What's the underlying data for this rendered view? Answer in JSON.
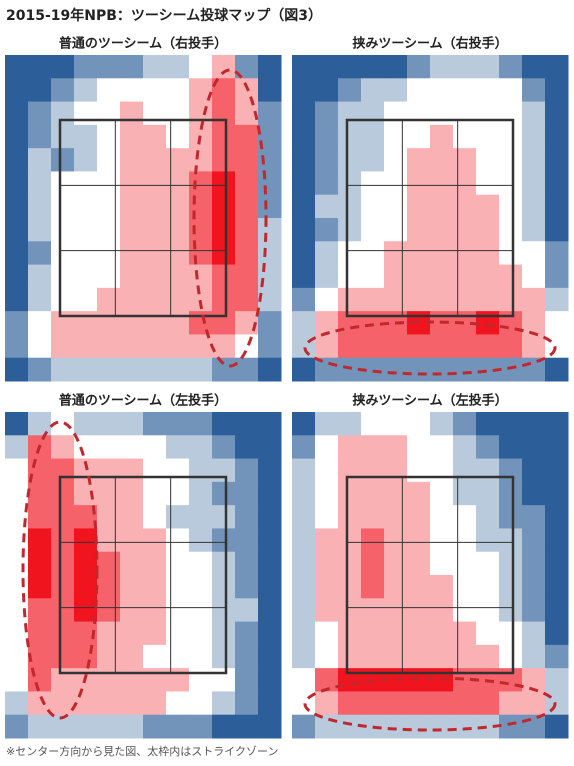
{
  "title": "2015-19年NPB：ツーシーム投球マップ（図3）",
  "note": "※センター方向から見た図、太枠内はストライクゾーン",
  "zlim": [
    -3,
    3
  ],
  "colors": {
    "low": "#2c5f99",
    "mid": "#ffffff",
    "high": "#f0141e"
  },
  "chart_data": [
    {
      "type": "heatmap",
      "title": "普通のツーシーム（右投手）",
      "values": [
        [
          -3,
          -3,
          -3,
          -2,
          -2,
          -2,
          -1,
          -1,
          0,
          1,
          -2,
          -3
        ],
        [
          -3,
          -3,
          -2,
          -1,
          0,
          0,
          0,
          0,
          1,
          2,
          1,
          -3
        ],
        [
          -3,
          -2,
          -1,
          0,
          0,
          1,
          0,
          0,
          1,
          2,
          1,
          -2
        ],
        [
          -3,
          -2,
          -1,
          -1,
          0,
          1,
          1,
          0,
          1,
          2,
          2,
          -2
        ],
        [
          -3,
          -1,
          -2,
          -1,
          0,
          1,
          1,
          1,
          1,
          2,
          2,
          -2
        ],
        [
          -3,
          -1,
          0,
          0,
          0,
          1,
          1,
          1,
          2,
          3,
          2,
          -2
        ],
        [
          -3,
          -1,
          0,
          0,
          0,
          1,
          1,
          1,
          2,
          3,
          2,
          -2
        ],
        [
          -3,
          -1,
          0,
          0,
          0,
          1,
          1,
          1,
          2,
          3,
          2,
          -1
        ],
        [
          -3,
          -2,
          0,
          0,
          0,
          1,
          1,
          1,
          2,
          3,
          2,
          -1
        ],
        [
          -3,
          -1,
          0,
          0,
          0,
          1,
          1,
          1,
          1,
          2,
          2,
          -1
        ],
        [
          -3,
          -1,
          0,
          0,
          1,
          1,
          1,
          1,
          1,
          2,
          2,
          -1
        ],
        [
          -2,
          0,
          1,
          1,
          1,
          1,
          1,
          1,
          2,
          2,
          1,
          -2
        ],
        [
          -2,
          0,
          1,
          1,
          1,
          1,
          1,
          1,
          1,
          1,
          0,
          -2
        ],
        [
          -3,
          -2,
          -1,
          -1,
          -1,
          -1,
          -1,
          -1,
          -1,
          -2,
          -2,
          -3
        ]
      ]
    },
    {
      "type": "heatmap",
      "title": "挟みツーシーム（右投手）",
      "values": [
        [
          -3,
          -3,
          -3,
          -3,
          -3,
          -2,
          -1,
          -1,
          -1,
          -2,
          -3,
          -3
        ],
        [
          -3,
          -3,
          -2,
          -1,
          -1,
          0,
          0,
          0,
          0,
          0,
          -2,
          -3
        ],
        [
          -3,
          -2,
          -1,
          -1,
          0,
          0,
          0,
          0,
          0,
          0,
          -1,
          -3
        ],
        [
          -3,
          -2,
          -1,
          -1,
          0,
          0,
          1,
          0,
          0,
          0,
          -1,
          -3
        ],
        [
          -3,
          -2,
          -1,
          -1,
          0,
          1,
          1,
          1,
          0,
          0,
          -1,
          -3
        ],
        [
          -3,
          -2,
          -1,
          0,
          0,
          1,
          1,
          1,
          0,
          0,
          -1,
          -3
        ],
        [
          -3,
          -1,
          -1,
          0,
          0,
          1,
          1,
          1,
          1,
          0,
          -1,
          -3
        ],
        [
          -3,
          -2,
          -1,
          0,
          0,
          1,
          1,
          1,
          1,
          0,
          -1,
          -3
        ],
        [
          -3,
          -1,
          0,
          0,
          1,
          1,
          1,
          1,
          1,
          0,
          0,
          -2
        ],
        [
          -3,
          -1,
          0,
          0,
          1,
          1,
          1,
          1,
          1,
          1,
          0,
          -2
        ],
        [
          -2,
          0,
          1,
          1,
          1,
          1,
          1,
          1,
          1,
          1,
          1,
          -1
        ],
        [
          -1,
          1,
          2,
          2,
          2,
          3,
          2,
          2,
          3,
          2,
          1,
          0
        ],
        [
          -1,
          1,
          2,
          2,
          2,
          2,
          2,
          2,
          2,
          2,
          1,
          0
        ],
        [
          -3,
          -2,
          -2,
          -2,
          -2,
          -2,
          -2,
          -2,
          -2,
          -2,
          -2,
          -3
        ]
      ]
    },
    {
      "type": "heatmap",
      "title": "普通のツーシーム（左投手）",
      "values": [
        [
          -3,
          -1,
          0,
          -1,
          -1,
          -1,
          -2,
          -2,
          -2,
          -3,
          -3,
          -3
        ],
        [
          -1,
          2,
          1,
          0,
          0,
          0,
          0,
          -1,
          -1,
          -2,
          -3,
          -3
        ],
        [
          0,
          2,
          2,
          1,
          1,
          1,
          0,
          0,
          -1,
          -1,
          -2,
          -3
        ],
        [
          0,
          2,
          2,
          1,
          1,
          1,
          0,
          0,
          -1,
          -2,
          -2,
          -3
        ],
        [
          0,
          2,
          2,
          2,
          1,
          1,
          0,
          -1,
          -1,
          -1,
          -2,
          -3
        ],
        [
          0,
          3,
          2,
          3,
          1,
          1,
          1,
          0,
          -1,
          -2,
          -2,
          -3
        ],
        [
          0,
          3,
          2,
          3,
          2,
          1,
          1,
          0,
          0,
          -1,
          -2,
          -3
        ],
        [
          0,
          3,
          2,
          3,
          2,
          1,
          1,
          0,
          0,
          -1,
          -2,
          -3
        ],
        [
          0,
          2,
          2,
          3,
          2,
          1,
          1,
          0,
          0,
          -1,
          -1,
          -3
        ],
        [
          0,
          2,
          2,
          2,
          1,
          1,
          1,
          0,
          0,
          -1,
          -2,
          -3
        ],
        [
          0,
          2,
          2,
          2,
          1,
          1,
          0,
          0,
          0,
          -1,
          -2,
          -3
        ],
        [
          0,
          2,
          1,
          1,
          1,
          1,
          1,
          1,
          0,
          0,
          -2,
          -3
        ],
        [
          -1,
          1,
          1,
          1,
          1,
          1,
          1,
          0,
          0,
          -1,
          -2,
          -3
        ],
        [
          -2,
          -1,
          -1,
          -1,
          -1,
          -1,
          -2,
          -2,
          -2,
          -3,
          -3,
          -3
        ]
      ]
    },
    {
      "type": "heatmap",
      "title": "挟みツーシーム（左投手）",
      "values": [
        [
          -3,
          -1,
          -1,
          0,
          0,
          0,
          -1,
          -2,
          -3,
          -3,
          -3,
          -3
        ],
        [
          -2,
          0,
          1,
          1,
          1,
          0,
          0,
          -1,
          -2,
          -3,
          -3,
          -3
        ],
        [
          -1,
          0,
          1,
          1,
          1,
          0,
          0,
          -1,
          -1,
          -2,
          -3,
          -3
        ],
        [
          -1,
          0,
          1,
          1,
          1,
          1,
          0,
          -1,
          -1,
          -2,
          -3,
          -3
        ],
        [
          -1,
          0,
          1,
          1,
          1,
          1,
          0,
          0,
          -1,
          -2,
          -2,
          -3
        ],
        [
          -1,
          1,
          1,
          2,
          1,
          1,
          0,
          0,
          -1,
          -1,
          -2,
          -3
        ],
        [
          -1,
          1,
          1,
          2,
          1,
          1,
          0,
          0,
          0,
          -1,
          -2,
          -3
        ],
        [
          -1,
          1,
          1,
          2,
          1,
          1,
          1,
          0,
          0,
          -1,
          -2,
          -3
        ],
        [
          -1,
          1,
          1,
          1,
          1,
          1,
          1,
          0,
          0,
          -1,
          -2,
          -3
        ],
        [
          -1,
          0,
          1,
          1,
          1,
          1,
          1,
          1,
          0,
          0,
          -1,
          -3
        ],
        [
          -1,
          0,
          1,
          1,
          1,
          1,
          1,
          1,
          1,
          0,
          -1,
          -2
        ],
        [
          0,
          2,
          3,
          3,
          3,
          3,
          3,
          2,
          2,
          2,
          1,
          -1
        ],
        [
          0,
          1,
          2,
          2,
          2,
          2,
          2,
          2,
          2,
          1,
          1,
          -1
        ],
        [
          -2,
          -1,
          -1,
          -1,
          -1,
          -1,
          -1,
          -1,
          -1,
          -2,
          -2,
          -3
        ]
      ]
    }
  ]
}
